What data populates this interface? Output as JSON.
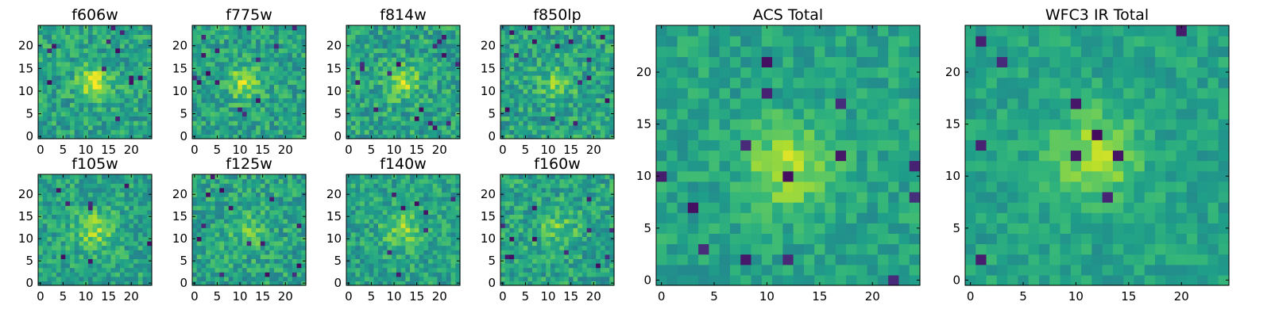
{
  "chart_data": [
    {
      "type": "heatmap",
      "title": "f606w",
      "xlim": [
        -0.5,
        24.5
      ],
      "ylim": [
        -0.5,
        24.5
      ],
      "xticks": [
        0,
        5,
        10,
        15,
        20
      ],
      "yticks": [
        0,
        5,
        10,
        15,
        20
      ],
      "colormap": "viridis",
      "seed": 11,
      "peak": [
        12,
        12
      ],
      "peak_sigma": 2.5,
      "peak_amp": 0.35,
      "noise_amp": 0.32,
      "holes": 12
    },
    {
      "type": "heatmap",
      "title": "f775w",
      "xlim": [
        -0.5,
        24.5
      ],
      "ylim": [
        -0.5,
        24.5
      ],
      "xticks": [
        0,
        5,
        10,
        15,
        20
      ],
      "yticks": [
        0,
        5,
        10,
        15,
        20
      ],
      "colormap": "viridis",
      "seed": 23,
      "peak": [
        11,
        12
      ],
      "peak_sigma": 2.5,
      "peak_amp": 0.3,
      "noise_amp": 0.32,
      "holes": 14
    },
    {
      "type": "heatmap",
      "title": "f814w",
      "xlim": [
        -0.5,
        24.5
      ],
      "ylim": [
        -0.5,
        24.5
      ],
      "xticks": [
        0,
        5,
        10,
        15,
        20
      ],
      "yticks": [
        0,
        5,
        10,
        15,
        20
      ],
      "colormap": "viridis",
      "seed": 37,
      "peak": [
        12,
        12
      ],
      "peak_sigma": 2.5,
      "peak_amp": 0.28,
      "noise_amp": 0.34,
      "holes": 16
    },
    {
      "type": "heatmap",
      "title": "f850lp",
      "xlim": [
        -0.5,
        24.5
      ],
      "ylim": [
        -0.5,
        24.5
      ],
      "xticks": [
        0,
        5,
        10,
        15,
        20
      ],
      "yticks": [
        0,
        5,
        10,
        15,
        20
      ],
      "colormap": "viridis",
      "seed": 41,
      "peak": [
        12,
        12
      ],
      "peak_sigma": 2.5,
      "peak_amp": 0.2,
      "noise_amp": 0.34,
      "holes": 14
    },
    {
      "type": "heatmap",
      "title": "f105w",
      "xlim": [
        -0.5,
        24.5
      ],
      "ylim": [
        -0.5,
        24.5
      ],
      "xticks": [
        0,
        5,
        10,
        15,
        20
      ],
      "yticks": [
        0,
        5,
        10,
        15,
        20
      ],
      "colormap": "viridis",
      "seed": 53,
      "peak": [
        12,
        12
      ],
      "peak_sigma": 3,
      "peak_amp": 0.25,
      "noise_amp": 0.3,
      "holes": 8
    },
    {
      "type": "heatmap",
      "title": "f125w",
      "xlim": [
        -0.5,
        24.5
      ],
      "ylim": [
        -0.5,
        24.5
      ],
      "xticks": [
        0,
        5,
        10,
        15,
        20
      ],
      "yticks": [
        0,
        5,
        10,
        15,
        20
      ],
      "colormap": "viridis",
      "seed": 67,
      "peak": [
        12,
        12
      ],
      "peak_sigma": 3,
      "peak_amp": 0.15,
      "noise_amp": 0.32,
      "holes": 14
    },
    {
      "type": "heatmap",
      "title": "f140w",
      "xlim": [
        -0.5,
        24.5
      ],
      "ylim": [
        -0.5,
        24.5
      ],
      "xticks": [
        0,
        5,
        10,
        15,
        20
      ],
      "yticks": [
        0,
        5,
        10,
        15,
        20
      ],
      "colormap": "viridis",
      "seed": 79,
      "peak": [
        12,
        12
      ],
      "peak_sigma": 3,
      "peak_amp": 0.22,
      "noise_amp": 0.3,
      "holes": 8
    },
    {
      "type": "heatmap",
      "title": "f160w",
      "xlim": [
        -0.5,
        24.5
      ],
      "ylim": [
        -0.5,
        24.5
      ],
      "xticks": [
        0,
        5,
        10,
        15,
        20
      ],
      "yticks": [
        0,
        5,
        10,
        15,
        20
      ],
      "colormap": "viridis",
      "seed": 83,
      "peak": [
        12,
        12
      ],
      "peak_sigma": 3,
      "peak_amp": 0.18,
      "noise_amp": 0.32,
      "holes": 12
    },
    {
      "type": "heatmap",
      "title": "ACS Total",
      "xlim": [
        -0.5,
        24.5
      ],
      "ylim": [
        -0.5,
        24.5
      ],
      "xticks": [
        0,
        5,
        10,
        15,
        20
      ],
      "yticks": [
        0,
        5,
        10,
        15,
        20
      ],
      "colormap": "viridis",
      "seed": 97,
      "peak": [
        12,
        11
      ],
      "peak_sigma": 2.8,
      "peak_amp": 0.3,
      "noise_amp": 0.22,
      "holes": 14
    },
    {
      "type": "heatmap",
      "title": "WFC3 IR Total",
      "xlim": [
        -0.5,
        24.5
      ],
      "ylim": [
        -0.5,
        24.5
      ],
      "xticks": [
        0,
        5,
        10,
        15,
        20
      ],
      "yticks": [
        0,
        5,
        10,
        15,
        20
      ],
      "colormap": "viridis",
      "seed": 101,
      "peak": [
        12,
        12
      ],
      "peak_sigma": 2.8,
      "peak_amp": 0.3,
      "noise_amp": 0.2,
      "holes": 10
    }
  ]
}
